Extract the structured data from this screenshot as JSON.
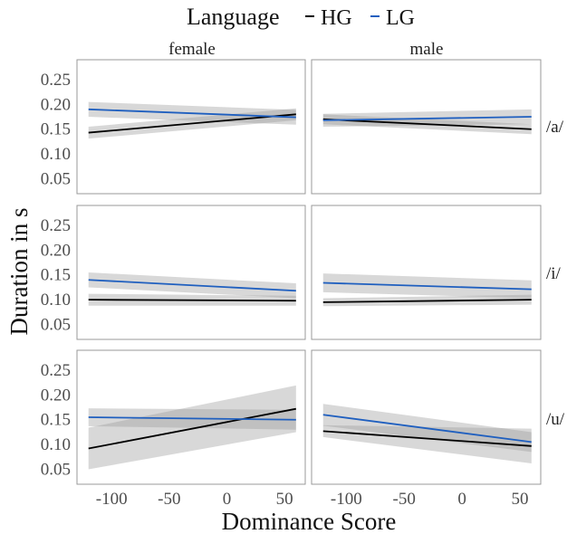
{
  "chart_data": {
    "type": "line",
    "legend": {
      "title": "Language",
      "position": "top",
      "entries": [
        {
          "label": "HG",
          "color": "#000000"
        },
        {
          "label": "LG",
          "color": "#1f5fbf"
        }
      ]
    },
    "col_facets": [
      "female",
      "male"
    ],
    "row_facets": [
      "/a/",
      "/i/",
      "/u/"
    ],
    "xlabel": "Dominance Score",
    "ylabel": "Duration in s",
    "xlim": [
      -130,
      68
    ],
    "ylim": [
      0.02,
      0.29
    ],
    "xticks": [
      -100,
      -50,
      0,
      50
    ],
    "xtick_labels": [
      "-100",
      "-50",
      "0",
      "50"
    ],
    "yticks": [
      0.05,
      0.1,
      0.15,
      0.2,
      0.25
    ],
    "ytick_labels": [
      "0.05",
      "0.10",
      "0.15",
      "0.20",
      "0.25"
    ],
    "grid": false,
    "ribbon_color": "#9e9e9e",
    "panels": [
      {
        "gender": "female",
        "vowel": "/a/",
        "series": [
          {
            "name": "HG",
            "x": [
              -120,
              60
            ],
            "y": [
              0.143,
              0.18
            ],
            "lower": [
              0.131,
              0.168
            ],
            "upper": [
              0.155,
              0.192
            ]
          },
          {
            "name": "LG",
            "x": [
              -120,
              60
            ],
            "y": [
              0.19,
              0.174
            ],
            "lower": [
              0.175,
              0.159
            ],
            "upper": [
              0.205,
              0.189
            ]
          }
        ]
      },
      {
        "gender": "male",
        "vowel": "/a/",
        "series": [
          {
            "name": "HG",
            "x": [
              -120,
              60
            ],
            "y": [
              0.17,
              0.15
            ],
            "lower": [
              0.16,
              0.14
            ],
            "upper": [
              0.18,
              0.16
            ]
          },
          {
            "name": "LG",
            "x": [
              -120,
              60
            ],
            "y": [
              0.168,
              0.175
            ],
            "lower": [
              0.155,
              0.16
            ],
            "upper": [
              0.181,
              0.19
            ]
          }
        ]
      },
      {
        "gender": "female",
        "vowel": "/i/",
        "series": [
          {
            "name": "HG",
            "x": [
              -120,
              60
            ],
            "y": [
              0.1,
              0.098
            ],
            "lower": [
              0.088,
              0.088
            ],
            "upper": [
              0.112,
              0.108
            ]
          },
          {
            "name": "LG",
            "x": [
              -120,
              60
            ],
            "y": [
              0.14,
              0.118
            ],
            "lower": [
              0.125,
              0.103
            ],
            "upper": [
              0.155,
              0.133
            ]
          }
        ]
      },
      {
        "gender": "male",
        "vowel": "/i/",
        "series": [
          {
            "name": "HG",
            "x": [
              -120,
              60
            ],
            "y": [
              0.095,
              0.1
            ],
            "lower": [
              0.087,
              0.09
            ],
            "upper": [
              0.103,
              0.11
            ]
          },
          {
            "name": "LG",
            "x": [
              -120,
              60
            ],
            "y": [
              0.134,
              0.121
            ],
            "lower": [
              0.115,
              0.103
            ],
            "upper": [
              0.153,
              0.139
            ]
          }
        ]
      },
      {
        "gender": "female",
        "vowel": "/u/",
        "series": [
          {
            "name": "HG",
            "x": [
              -120,
              60
            ],
            "y": [
              0.092,
              0.172
            ],
            "lower": [
              0.05,
              0.125
            ],
            "upper": [
              0.134,
              0.219
            ]
          },
          {
            "name": "LG",
            "x": [
              -120,
              60
            ],
            "y": [
              0.155,
              0.15
            ],
            "lower": [
              0.137,
              0.13
            ],
            "upper": [
              0.173,
              0.17
            ]
          }
        ]
      },
      {
        "gender": "male",
        "vowel": "/u/",
        "series": [
          {
            "name": "HG",
            "x": [
              -120,
              60
            ],
            "y": [
              0.127,
              0.097
            ],
            "lower": [
              0.115,
              0.062
            ],
            "upper": [
              0.139,
              0.132
            ]
          },
          {
            "name": "LG",
            "x": [
              -120,
              60
            ],
            "y": [
              0.16,
              0.105
            ],
            "lower": [
              0.138,
              0.085
            ],
            "upper": [
              0.182,
              0.125
            ]
          }
        ]
      }
    ]
  }
}
